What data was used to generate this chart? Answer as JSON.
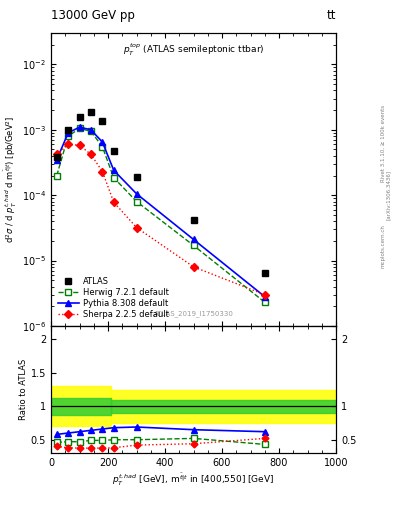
{
  "title_left": "13000 GeV pp",
  "title_right": "tt",
  "inner_title": "$p_T^{top}$ (ATLAS semileptonic ttbar)",
  "watermark": "ATLAS_2019_I1750330",
  "ylabel_main": "d$^2\\sigma$ / d $p_T^{t,had}$ d m$^{\\bar{t}|t}$) [pb/GeV$^2$]",
  "ylabel_ratio": "Ratio to ATLAS",
  "xlabel": "$p_T^{t,had}$ [GeV], m$^{\\bar{t}|t}$ in [400,550] [GeV]",
  "atlas_x": [
    20,
    60,
    100,
    140,
    180,
    220,
    300,
    500,
    750
  ],
  "atlas_y": [
    0.00038,
    0.001,
    0.00155,
    0.00185,
    0.00135,
    0.00048,
    0.00019,
    4.2e-05,
    6.5e-06
  ],
  "herwig_x": [
    20,
    60,
    100,
    140,
    180,
    220,
    300,
    500,
    750
  ],
  "herwig_y": [
    0.0002,
    0.0008,
    0.00105,
    0.00095,
    0.00055,
    0.000185,
    8e-05,
    1.7e-05,
    2.3e-06
  ],
  "pythia_x": [
    20,
    60,
    100,
    140,
    180,
    220,
    300,
    500,
    750
  ],
  "pythia_y": [
    0.00035,
    0.0009,
    0.0011,
    0.001,
    0.00065,
    0.00024,
    0.000105,
    2.1e-05,
    2.8e-06
  ],
  "sherpa_x": [
    20,
    60,
    100,
    140,
    180,
    220,
    300,
    500,
    750
  ],
  "sherpa_y": [
    0.00042,
    0.0006,
    0.00058,
    0.00042,
    0.00023,
    7.8e-05,
    3.2e-05,
    8e-06,
    3e-06
  ],
  "ratio_herwig_x": [
    20,
    60,
    100,
    140,
    180,
    220,
    300,
    500,
    750
  ],
  "ratio_herwig_y": [
    0.46,
    0.47,
    0.47,
    0.49,
    0.49,
    0.5,
    0.5,
    0.52,
    0.43
  ],
  "ratio_pythia_x": [
    20,
    60,
    100,
    140,
    180,
    220,
    300,
    500,
    750
  ],
  "ratio_pythia_y": [
    0.58,
    0.6,
    0.62,
    0.64,
    0.66,
    0.68,
    0.69,
    0.65,
    0.62
  ],
  "ratio_sherpa_x": [
    20,
    60,
    100,
    140,
    180,
    220,
    300,
    500,
    750
  ],
  "ratio_sherpa_y": [
    0.4,
    0.38,
    0.375,
    0.375,
    0.375,
    0.38,
    0.42,
    0.44,
    0.52
  ],
  "ylim_main": [
    1e-06,
    0.03
  ],
  "ylim_ratio": [
    0.3,
    2.2
  ],
  "xlim": [
    0,
    1000
  ]
}
